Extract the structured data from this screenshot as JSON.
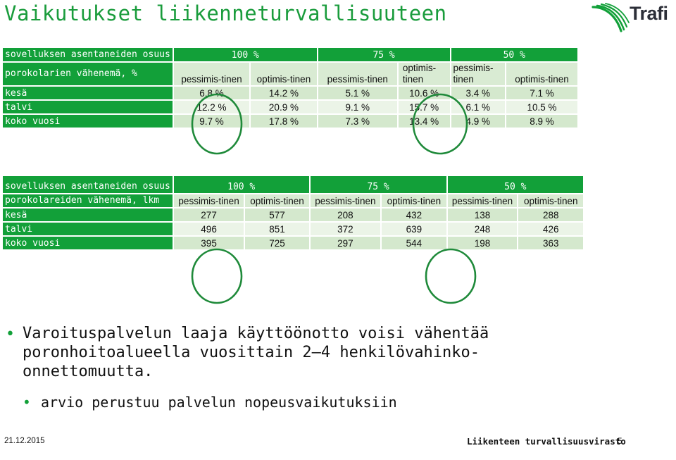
{
  "title": "Vaikutukset liikenneturvallisuuteen",
  "logo_text": "Trafi",
  "table1": {
    "header_label": "sovelluksen asentaneiden osuus",
    "groups": [
      "100 %",
      "75 %",
      "50 %"
    ],
    "sub_label": "porokolarien vähenemä, %",
    "sub_headers": [
      "pessimis-tinen",
      "optimis-tinen",
      "pessimis-tinen",
      "optimis-tinen",
      "pessimis-tinen",
      "optimis-tinen"
    ],
    "rows": [
      {
        "label": "kesä",
        "values": [
          "6.8 %",
          "14.2 %",
          "5.1 %",
          "10.6 %",
          "3.4 %",
          "7.1 %"
        ]
      },
      {
        "label": "talvi",
        "values": [
          "12.2 %",
          "20.9 %",
          "9.1 %",
          "15.7 %",
          "6.1 %",
          "10.5 %"
        ]
      },
      {
        "label": "koko vuosi",
        "values": [
          "9.7 %",
          "17.8 %",
          "7.3 %",
          "13.4 %",
          "4.9 %",
          "8.9 %"
        ]
      }
    ]
  },
  "table2": {
    "header_label": "sovelluksen asentaneiden osuus",
    "groups": [
      "100 %",
      "75 %",
      "50 %"
    ],
    "sub_label": "porokolareiden vähenemä, lkm",
    "sub_headers": [
      "pessimis-tinen",
      "optimis-tinen",
      "pessimis-tinen",
      "optimis-tinen",
      "pessimis-tinen",
      "optimis-tinen"
    ],
    "rows": [
      {
        "label": "kesä",
        "values": [
          "277",
          "577",
          "208",
          "432",
          "138",
          "288"
        ]
      },
      {
        "label": "talvi",
        "values": [
          "496",
          "851",
          "372",
          "639",
          "248",
          "426"
        ]
      },
      {
        "label": "koko vuosi",
        "values": [
          "395",
          "725",
          "297",
          "544",
          "198",
          "363"
        ]
      }
    ]
  },
  "bullets": {
    "main": "Varoituspalvelun laaja käyttöönotto voisi vähentää poronhoitoalueella vuosittain 2–4 henkilövahinko-onnettomuutta.",
    "sub": "arvio perustuu palvelun nopeusvaikutuksiin"
  },
  "footer": {
    "date": "21.12.2015",
    "org": "Liikenteen turvallisuusvirasto",
    "page": "5"
  },
  "colors": {
    "accent": "#12a039",
    "row_dark": "#d4e8cd",
    "row_light": "#ebf4e7",
    "circle": "#1f8a3a"
  }
}
